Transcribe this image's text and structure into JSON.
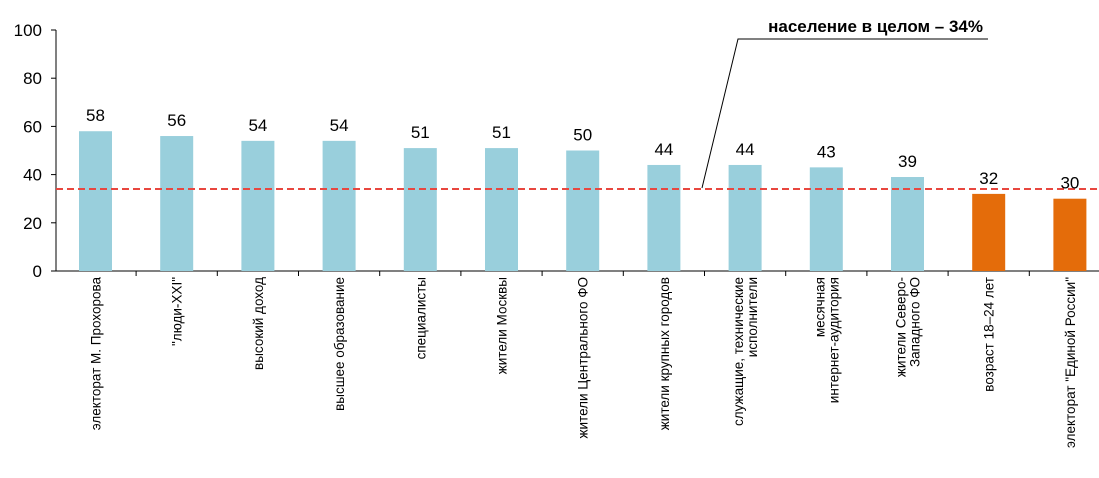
{
  "chart_data": {
    "type": "bar",
    "categories": [
      [
        "электорат М. Прохорова"
      ],
      [
        "\"люди-XXI\""
      ],
      [
        "высокий доход"
      ],
      [
        "высшее образование"
      ],
      [
        "специалисты"
      ],
      [
        "жители Москвы"
      ],
      [
        "жители Центрального ФО"
      ],
      [
        "жители крупных городов"
      ],
      [
        "служащие, технические",
        "исполнители"
      ],
      [
        "месячная",
        "интернет-аудитория"
      ],
      [
        "жители Северо-",
        "Западного ФО"
      ],
      [
        "возраст 18–24 лет"
      ],
      [
        "электорат \"Единой России\""
      ]
    ],
    "values": [
      58,
      56,
      54,
      54,
      51,
      51,
      50,
      44,
      44,
      43,
      39,
      32,
      30
    ],
    "highlight": [
      false,
      false,
      false,
      false,
      false,
      false,
      false,
      false,
      false,
      false,
      false,
      true,
      true
    ],
    "colors": {
      "bar": "#99cfdc",
      "highlight": "#e46c0a",
      "reference_line": "#e8473f"
    },
    "ylim": [
      0,
      100
    ],
    "yticks": [
      0,
      20,
      40,
      60,
      80,
      100
    ],
    "reference": {
      "value": 34,
      "label": "население в целом – 34%"
    },
    "grid": false,
    "title": "",
    "xlabel": "",
    "ylabel": ""
  }
}
